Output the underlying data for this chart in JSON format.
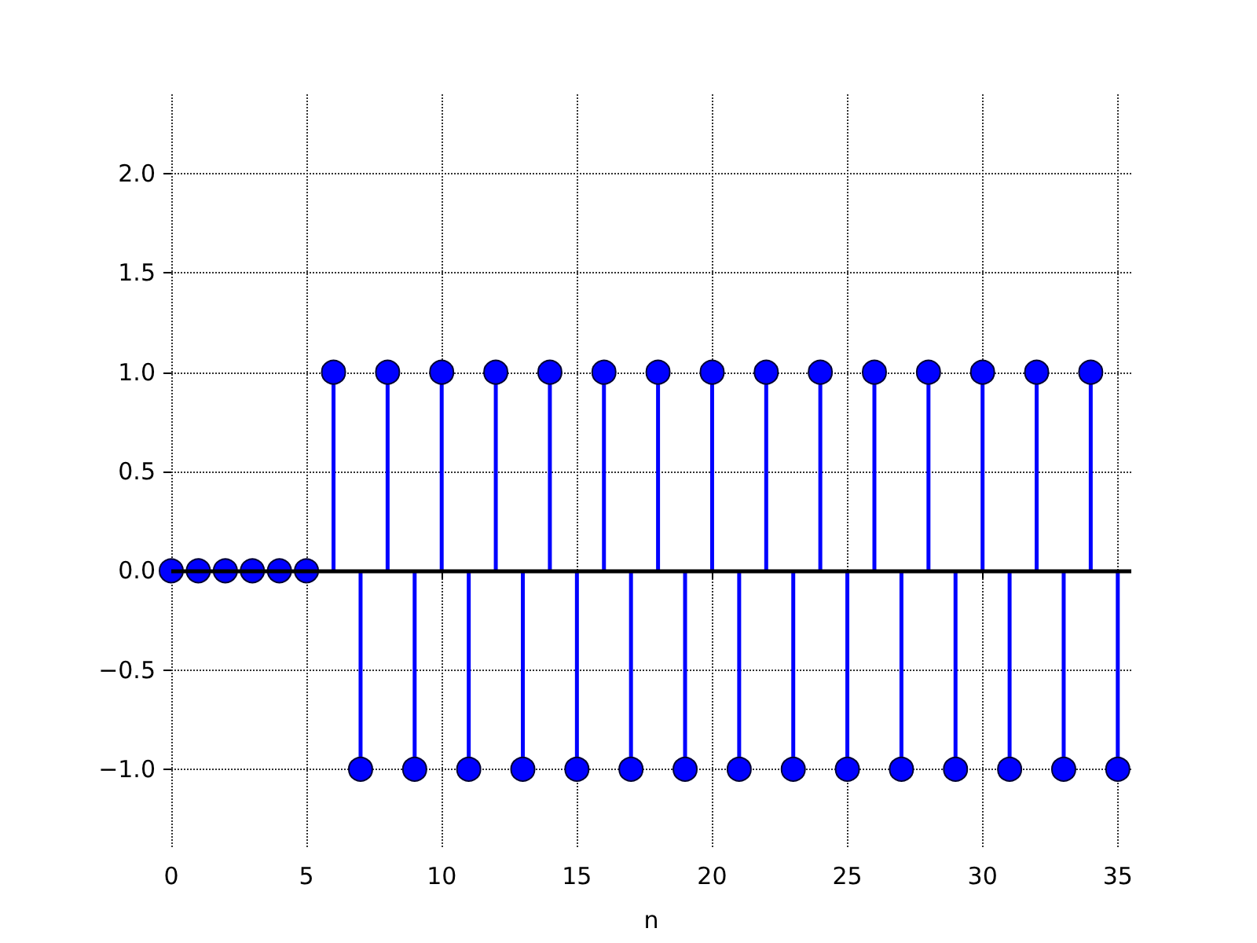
{
  "chart_data": {
    "type": "lollipop",
    "xlabel": "n",
    "x": [
      0,
      1,
      2,
      3,
      4,
      5,
      6,
      7,
      8,
      9,
      10,
      11,
      12,
      13,
      14,
      15,
      16,
      17,
      18,
      19,
      20,
      21,
      22,
      23,
      24,
      25,
      26,
      27,
      28,
      29,
      30,
      31,
      32,
      33,
      34,
      35
    ],
    "values": [
      0,
      0,
      0,
      0,
      0,
      0,
      1,
      -1,
      1,
      -1,
      1,
      -1,
      1,
      -1,
      1,
      -1,
      1,
      -1,
      1,
      -1,
      1,
      -1,
      1,
      -1,
      1,
      -1,
      1,
      -1,
      1,
      -1,
      1,
      -1,
      1,
      -1,
      1,
      -1
    ],
    "color": "#0000ff",
    "marker": "circle",
    "xlim": [
      0,
      35.5
    ],
    "xticks": [
      0,
      5,
      10,
      15,
      20,
      25,
      30,
      35
    ],
    "ylim": [
      -1.4,
      2.4
    ],
    "yticks": [
      {
        "value": -1,
        "label": "−1.0"
      },
      {
        "value": -0.5,
        "label": "−0.5"
      },
      {
        "value": 0,
        "label": "0.0"
      },
      {
        "value": 0.5,
        "label": "0.5"
      },
      {
        "value": 1,
        "label": "1.0"
      },
      {
        "value": 1.5,
        "label": "1.5"
      },
      {
        "value": 2,
        "label": "2.0"
      }
    ],
    "ref_lines": [
      {
        "axis": "y",
        "value": 0,
        "color": "#000000"
      }
    ],
    "grid": true
  }
}
